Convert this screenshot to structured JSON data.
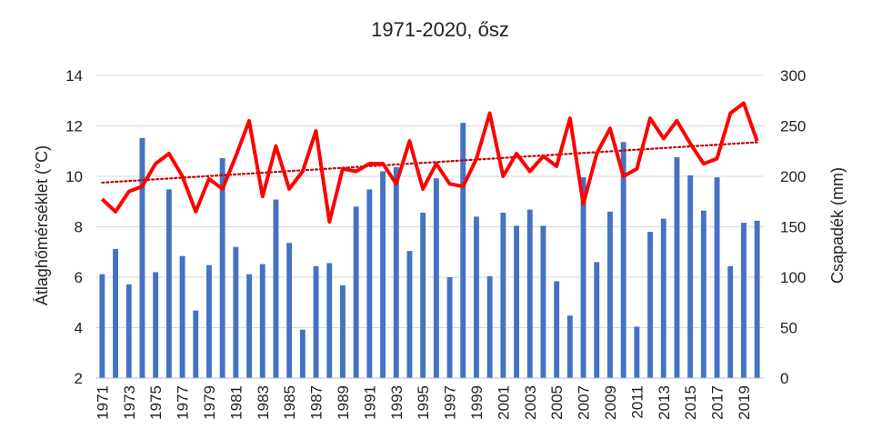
{
  "chart_data": {
    "type": "bar",
    "title": "1971-2020, ősz",
    "ylabel": "Átlaghőmérséklet (°C)",
    "y2label": "Csapadék (mm)",
    "ylim": [
      2,
      14
    ],
    "y2lim": [
      0,
      300
    ],
    "yticks": [
      "2",
      "4",
      "6",
      "8",
      "10",
      "12",
      "14"
    ],
    "y2ticks": [
      "0",
      "50",
      "100",
      "150",
      "200",
      "250",
      "300"
    ],
    "grid": true,
    "legend": "none",
    "years": [
      1971,
      1972,
      1973,
      1974,
      1975,
      1976,
      1977,
      1978,
      1979,
      1980,
      1981,
      1982,
      1983,
      1984,
      1985,
      1986,
      1987,
      1988,
      1989,
      1990,
      1991,
      1992,
      1993,
      1994,
      1995,
      1996,
      1997,
      1998,
      1999,
      2000,
      2001,
      2002,
      2003,
      2004,
      2005,
      2006,
      2007,
      2008,
      2009,
      2010,
      2011,
      2012,
      2013,
      2014,
      2015,
      2016,
      2017,
      2018,
      2019,
      2020
    ],
    "xticks": [
      "1971",
      "1973",
      "1975",
      "1977",
      "1979",
      "1981",
      "1983",
      "1985",
      "1987",
      "1989",
      "1991",
      "1993",
      "1995",
      "1997",
      "1999",
      "2001",
      "2003",
      "2005",
      "2007",
      "2009",
      "2011",
      "2013",
      "2015",
      "2017",
      "2019"
    ],
    "series": [
      {
        "kind": "bar",
        "axis": "right",
        "color": "#4472C4",
        "values": [
          103,
          128,
          93,
          238,
          105,
          187,
          121,
          67,
          112,
          218,
          130,
          103,
          113,
          177,
          134,
          48,
          111,
          114,
          92,
          170,
          187,
          205,
          209,
          126,
          164,
          198,
          100,
          253,
          160,
          101,
          164,
          151,
          167,
          151,
          96,
          62,
          199,
          115,
          165,
          234,
          51,
          145,
          158,
          219,
          201,
          166,
          199,
          111,
          154,
          156
        ]
      },
      {
        "kind": "line",
        "axis": "left",
        "color": "#FF0000",
        "values": [
          9.1,
          8.6,
          9.4,
          9.6,
          10.5,
          10.9,
          10.0,
          8.6,
          9.9,
          9.5,
          10.8,
          12.2,
          9.2,
          11.2,
          9.5,
          10.2,
          11.8,
          8.2,
          10.3,
          10.2,
          10.5,
          10.5,
          9.7,
          11.4,
          9.5,
          10.5,
          9.7,
          9.6,
          10.7,
          12.5,
          10.0,
          10.9,
          10.2,
          10.8,
          10.4,
          12.3,
          8.9,
          10.9,
          11.9,
          10.0,
          10.3,
          12.3,
          11.5,
          12.2,
          11.3,
          10.5,
          10.7,
          12.5,
          12.9,
          11.4
        ]
      },
      {
        "kind": "trendline",
        "axis": "left",
        "color": "#C00000",
        "style": "dotted",
        "values": [
          9.75,
          11.35
        ]
      }
    ]
  }
}
